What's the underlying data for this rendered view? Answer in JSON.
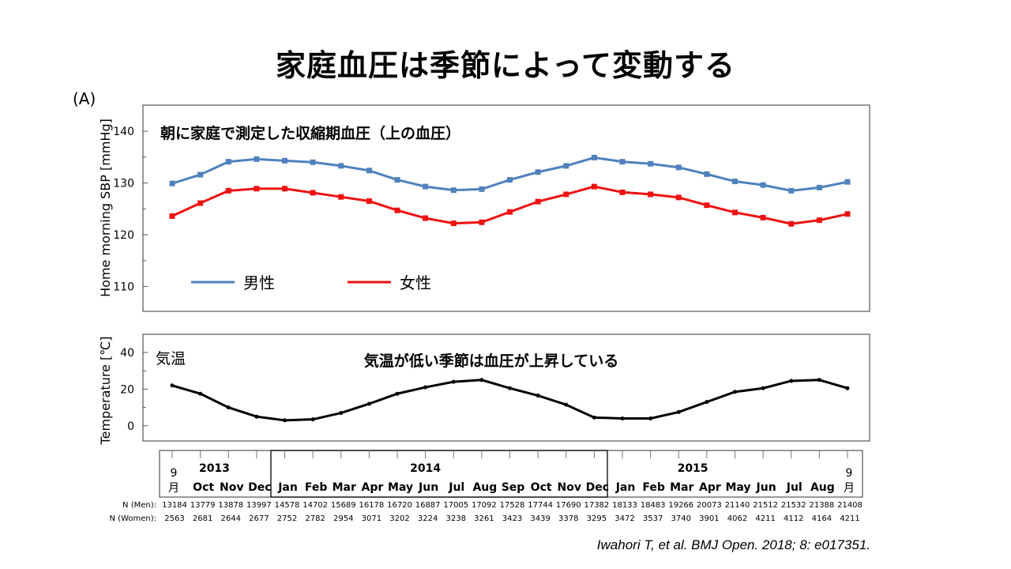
{
  "slide_title": "家庭血圧は季節によって変動する",
  "panel_label": "(A)",
  "citation": "Iwahori T, et al. BMJ Open. 2018; 8: e017351.",
  "chart_data": [
    {
      "type": "line",
      "title": "朝に家庭で測定した収縮期血圧（上の血圧）",
      "ylabel": "Home morning SBP [mmHg]",
      "ylim": [
        105,
        145
      ],
      "yticks": [
        110,
        120,
        130,
        140
      ],
      "legend_position": "bottom-left",
      "series": [
        {
          "name": "男性",
          "color": "#4f81bd",
          "values": [
            129.9,
            131.6,
            134.1,
            134.6,
            134.3,
            134.0,
            133.3,
            132.4,
            130.6,
            129.3,
            128.6,
            128.8,
            130.6,
            132.1,
            133.3,
            134.9,
            134.1,
            133.7,
            133.0,
            131.7,
            130.3,
            129.6,
            128.5,
            129.1,
            130.2
          ]
        },
        {
          "name": "女性",
          "color": "#ee1111",
          "values": [
            123.6,
            126.1,
            128.5,
            128.9,
            128.9,
            128.1,
            127.3,
            126.5,
            124.7,
            123.2,
            122.2,
            122.4,
            124.4,
            126.4,
            127.8,
            129.3,
            128.2,
            127.8,
            127.2,
            125.7,
            124.3,
            123.3,
            122.1,
            122.8,
            124.0
          ]
        }
      ]
    },
    {
      "type": "line",
      "title": "気温が低い季節は血圧が上昇している",
      "series_label": "気温",
      "ylabel": "Temperature [℃]",
      "ylim": [
        -8,
        48
      ],
      "yticks": [
        0,
        20,
        40
      ],
      "series": [
        {
          "color": "#000000",
          "values": [
            22,
            17.5,
            10,
            5,
            3,
            3.5,
            7,
            12,
            17.5,
            21,
            24,
            25,
            20.5,
            16.5,
            11.5,
            4.5,
            4,
            4,
            7.5,
            13,
            18.5,
            20.5,
            24.5,
            25,
            20.5
          ]
        }
      ]
    }
  ],
  "x_axis": {
    "months": [
      "9\n月",
      "Oct",
      "Nov",
      "Dec",
      "Jan",
      "Feb",
      "Mar",
      "Apr",
      "May",
      "Jun",
      "Jul",
      "Aug",
      "Sep",
      "Oct",
      "Nov",
      "Dec",
      "Jan",
      "Feb",
      "Mar",
      "Apr",
      "May",
      "Jun",
      "Jul",
      "Aug",
      "9\n月"
    ],
    "years": [
      {
        "label": "2013",
        "col": 1.5
      },
      {
        "label": "2014",
        "col": 9
      },
      {
        "label": "2015",
        "col": 18.5
      }
    ],
    "n_men_label": "N (Men):",
    "n_women_label": "N (Women):",
    "n_men": [
      "13184",
      "13779",
      "13878",
      "13997",
      "14578",
      "14702",
      "15689",
      "16178",
      "16720",
      "16887",
      "17005",
      "17092",
      "17528",
      "17744",
      "17690",
      "17382",
      "18133",
      "18483",
      "19266",
      "20073",
      "21140",
      "21512",
      "21532",
      "21388",
      "21408"
    ],
    "n_women": [
      "2563",
      "2681",
      "2644",
      "2677",
      "2752",
      "2782",
      "2954",
      "3071",
      "3202",
      "3224",
      "3238",
      "3261",
      "3423",
      "3439",
      "3378",
      "3295",
      "3472",
      "3537",
      "3740",
      "3901",
      "4062",
      "4211",
      "4112",
      "4164",
      "4211"
    ]
  }
}
